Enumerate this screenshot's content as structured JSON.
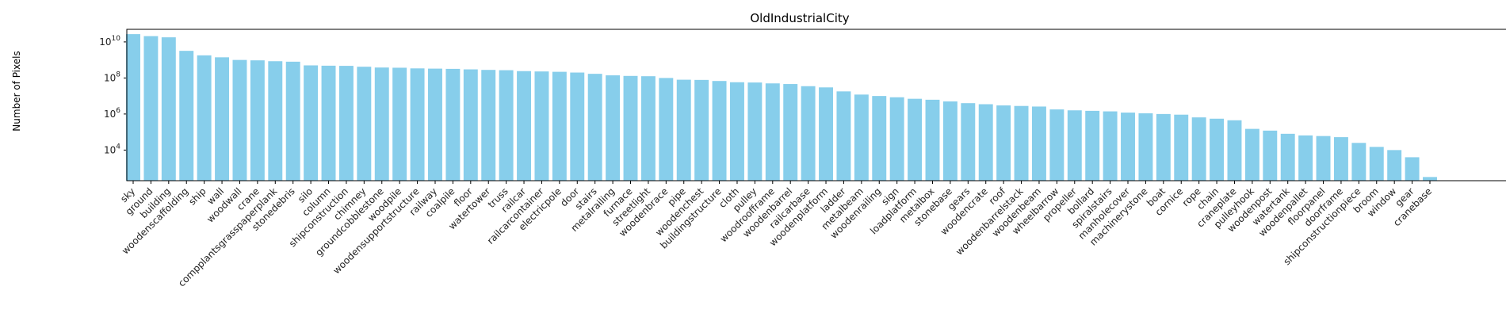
{
  "chart_data": {
    "type": "bar",
    "title": "OldIndustrialCity",
    "xlabel": "",
    "ylabel": "Number of Pixels",
    "y_scale": "log",
    "ylim": [
      200,
      50000000000
    ],
    "y_ticks": [
      {
        "value": 10000,
        "base": "10",
        "exp": "4"
      },
      {
        "value": 1000000,
        "base": "10",
        "exp": "6"
      },
      {
        "value": 100000000,
        "base": "10",
        "exp": "8"
      },
      {
        "value": 10000000000,
        "base": "10",
        "exp": "10"
      }
    ],
    "bar_color": "#87CEEB",
    "grid": false,
    "categories": [
      "sky",
      "ground",
      "building",
      "woodenscaffolding",
      "ship",
      "wall",
      "woodwall",
      "crane",
      "compplantsgrasspaperplank",
      "stonedebris",
      "silo",
      "column",
      "shipconstruction",
      "chimney",
      "groundcobblestone",
      "woodpile",
      "woodensupportstructure",
      "railway",
      "coalpile",
      "floor",
      "watertower",
      "truss",
      "railcar",
      "railcarcontainer",
      "electricpole",
      "door",
      "stairs",
      "metalrailing",
      "furnace",
      "streetlight",
      "woodenbrace",
      "pipe",
      "woodenchest",
      "buildingstructure",
      "cloth",
      "pulley",
      "woodroofframe",
      "woodenbarrel",
      "railcarbase",
      "woodenplatform",
      "ladder",
      "metalbeam",
      "woodenrailing",
      "sign",
      "loadplatform",
      "metalbox",
      "stonebase",
      "gears",
      "woodencrate",
      "roof",
      "woodenbarrelstack",
      "woodenbeam",
      "wheelbarrow",
      "propeller",
      "bollard",
      "spiralstairs",
      "manholecover",
      "machinerystone",
      "boat",
      "cornice",
      "rope",
      "chain",
      "craneplate",
      "pulleyhook",
      "woodenpost",
      "watertank",
      "woodenpallet",
      "floorpanel",
      "doorframe",
      "shipconstructionpiece",
      "broom",
      "window",
      "gear",
      "cranebase"
    ],
    "values": [
      27000000000,
      21000000000,
      18000000000,
      3200000000,
      1800000000,
      1400000000,
      1000000000,
      950000000,
      850000000,
      800000000,
      500000000,
      480000000,
      470000000,
      420000000,
      380000000,
      370000000,
      340000000,
      330000000,
      320000000,
      300000000,
      280000000,
      270000000,
      240000000,
      230000000,
      220000000,
      200000000,
      170000000,
      140000000,
      130000000,
      125000000,
      100000000,
      80000000,
      78000000,
      68000000,
      58000000,
      56000000,
      50000000,
      46000000,
      35000000,
      30000000,
      18000000,
      12000000,
      10000000,
      8500000,
      7000000,
      6200000,
      5000000,
      4000000,
      3500000,
      3000000,
      2800000,
      2600000,
      1800000,
      1600000,
      1500000,
      1400000,
      1200000,
      1100000,
      1000000,
      920000,
      650000,
      550000,
      450000,
      150000,
      120000,
      80000,
      65000,
      60000,
      52000,
      25000,
      15000,
      10000,
      4000,
      320
    ]
  }
}
